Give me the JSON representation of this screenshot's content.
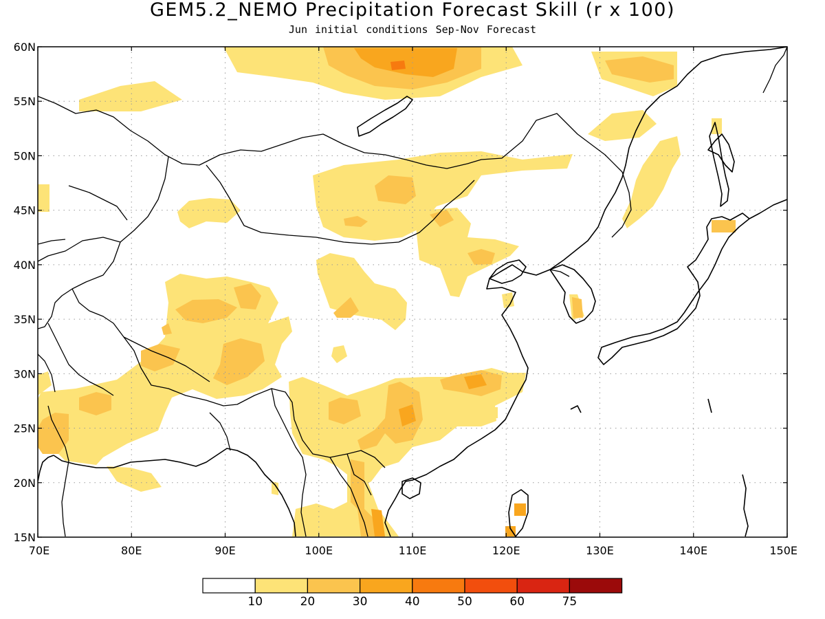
{
  "title": "GEM5.2_NEMO Precipitation Forecast Skill (r x 100)",
  "subtitle": "Jun initial conditions   Sep-Nov Forecast",
  "colors": {
    "c0": "#ffffff",
    "c10": "#fde377",
    "c20": "#fbc44e",
    "c30": "#f9a61e",
    "c40": "#f77a0f",
    "c50": "#f24e0d",
    "c60": "#d92512",
    "c75": "#9b0a0a",
    "coast": "#000000",
    "grid": "#9a9a9a"
  },
  "map": {
    "lon_range": [
      70,
      150
    ],
    "lat_range": [
      15,
      60
    ],
    "lon_ticks": [
      "70E",
      "80E",
      "90E",
      "100E",
      "110E",
      "120E",
      "130E",
      "140E",
      "150E"
    ],
    "lat_ticks": [
      "15N",
      "20N",
      "25N",
      "30N",
      "35N",
      "40N",
      "45N",
      "50N",
      "55N",
      "60N"
    ],
    "grid": "dotted",
    "icons": [
      "coastline",
      "country-border",
      "contour-fill"
    ]
  },
  "colorbar": {
    "labels": [
      "10",
      "20",
      "30",
      "40",
      "50",
      "60",
      "75"
    ]
  }
}
